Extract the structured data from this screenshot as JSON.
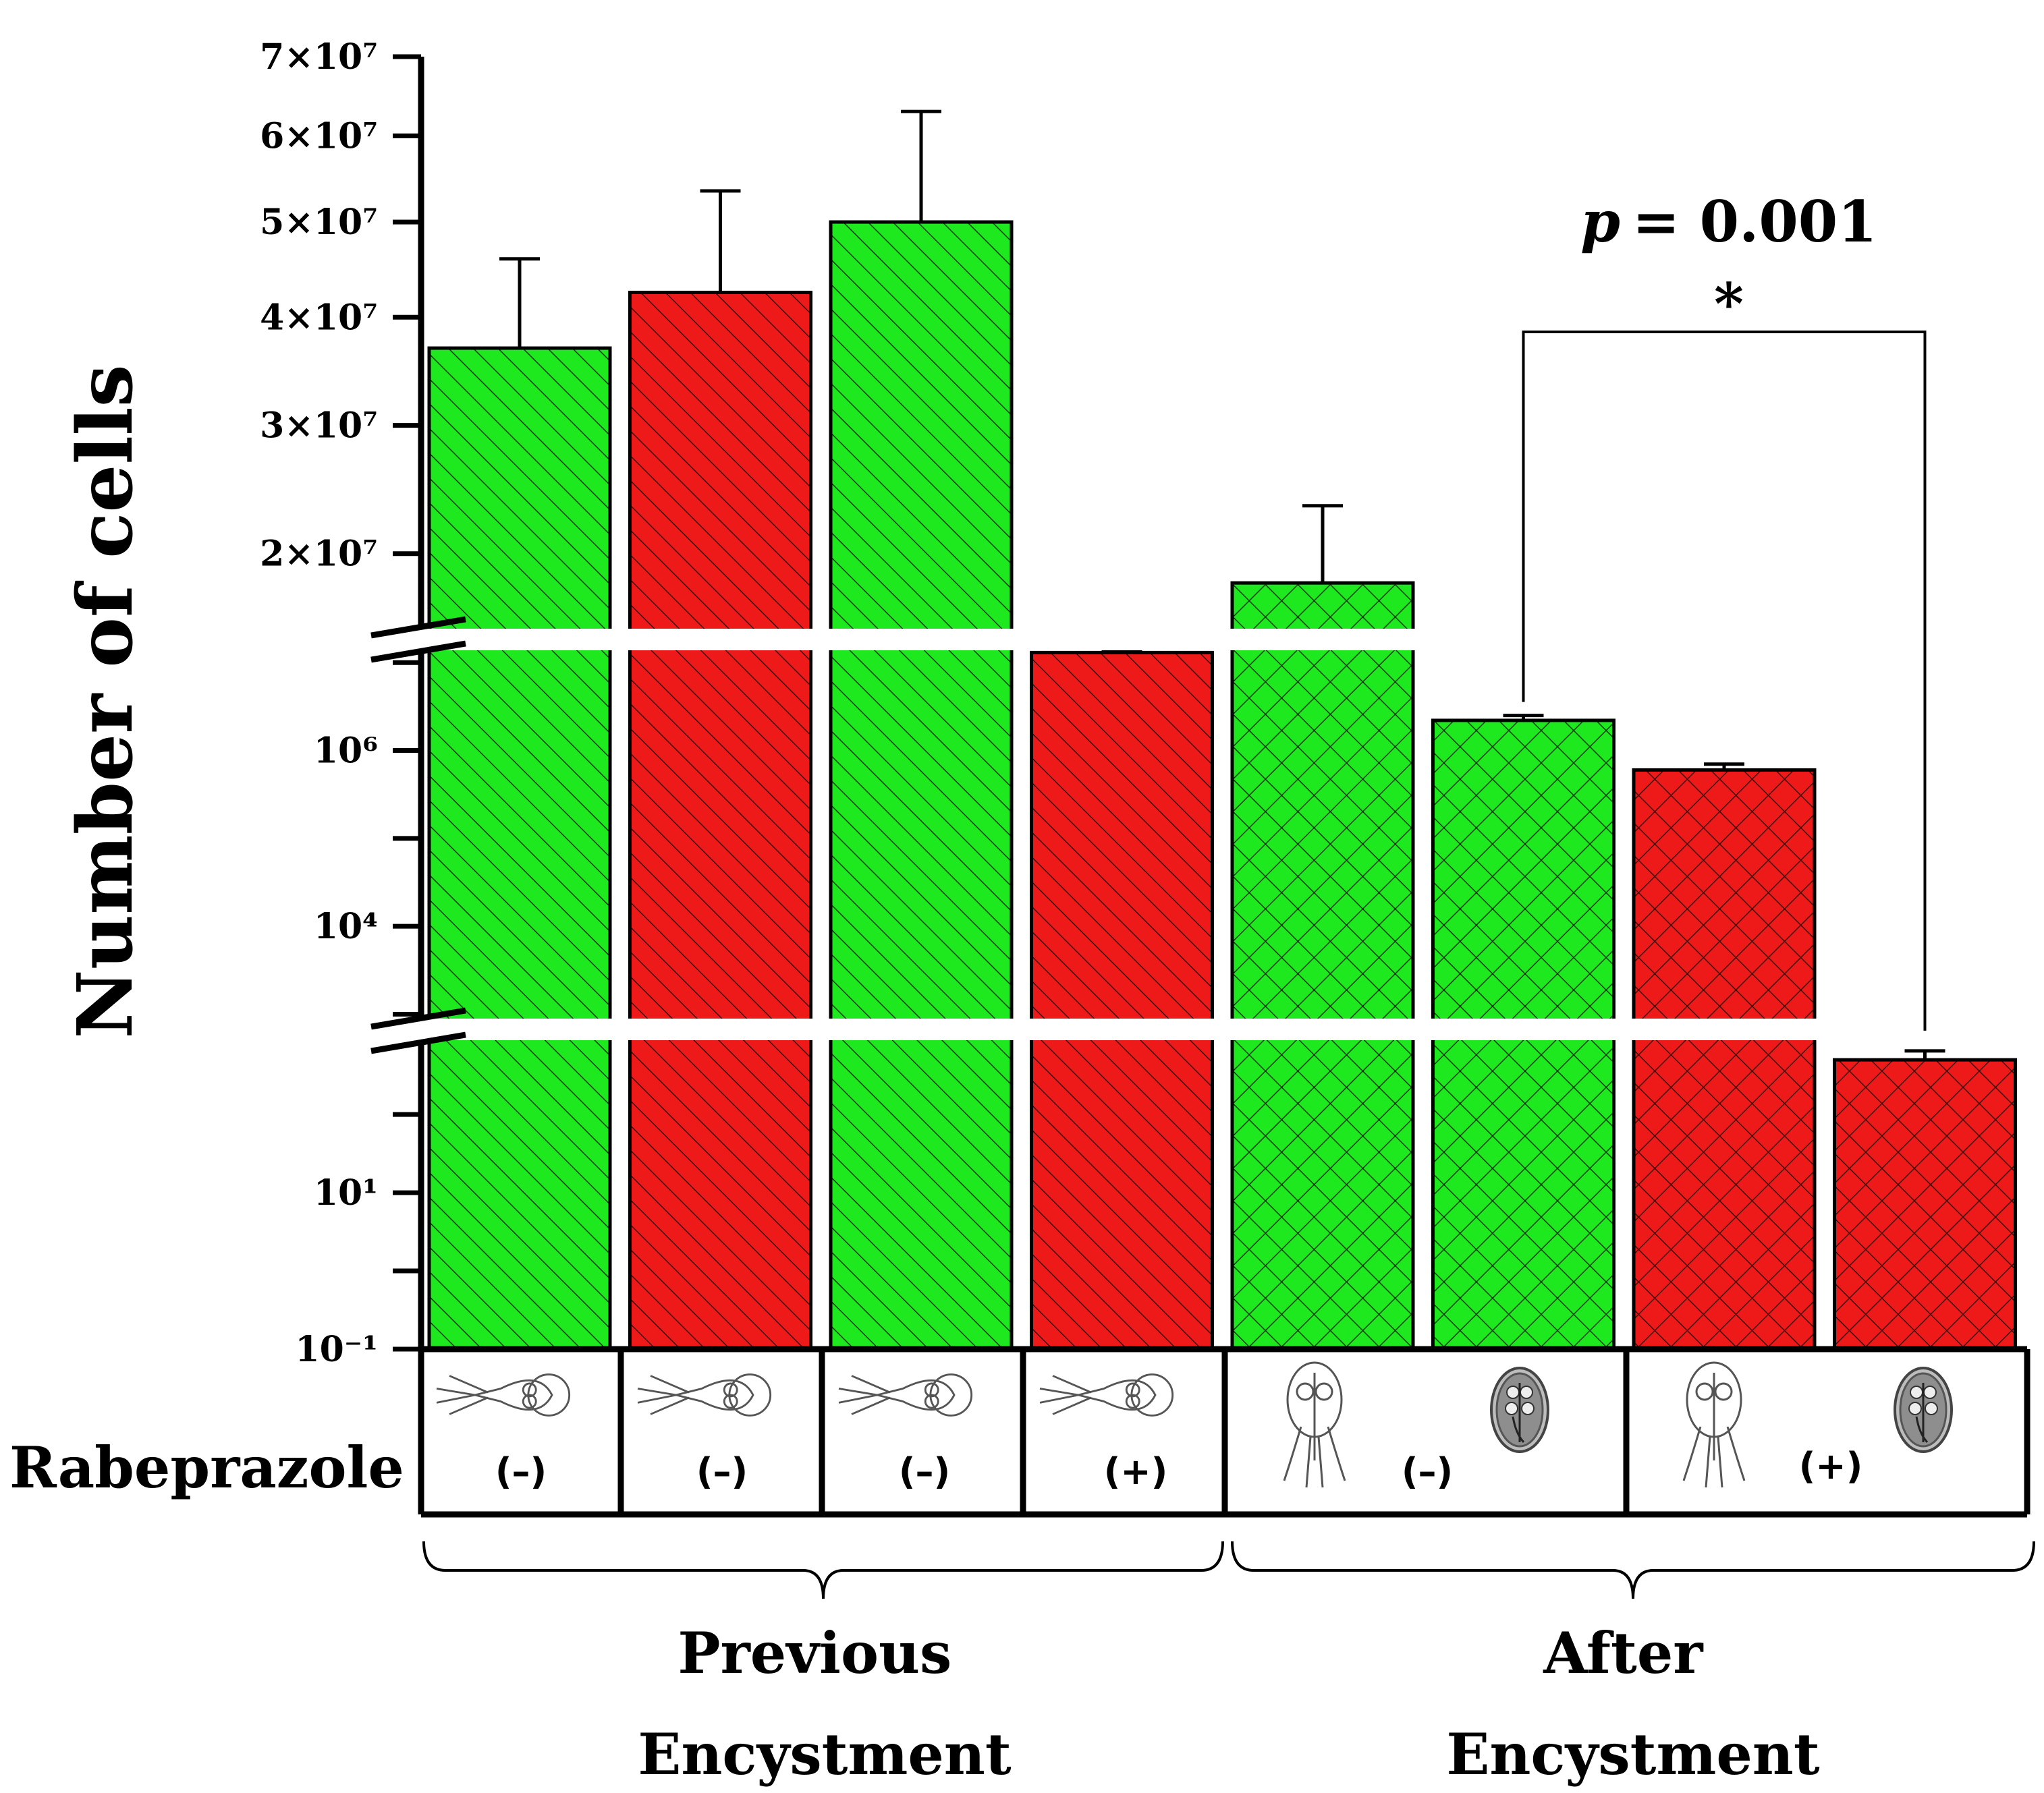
{
  "chart_data": {
    "type": "bar",
    "ylabel": "Number of cells",
    "yscale": "broken (linear top / log middle / log bottom)",
    "yticks_top": [
      "2×10⁷",
      "3×10⁷",
      "4×10⁷",
      "5×10⁷",
      "6×10⁷",
      "7×10⁷"
    ],
    "yticks_mid": [
      "10⁴",
      "10⁶"
    ],
    "yticks_bottom": [
      "10⁻¹",
      "10¹"
    ],
    "ytick_values_top": [
      20000000.0,
      30000000.0,
      40000000.0,
      50000000.0,
      60000000.0,
      70000000.0
    ],
    "row_label": "Rabeprazole",
    "treatments": [
      "(–)",
      "(–)",
      "(–)",
      "(+)",
      "(–)",
      "(+)"
    ],
    "groups": [
      "Previous Encystment",
      "After Encystment"
    ],
    "group_lines": [
      [
        "Previous",
        "Encystment"
      ],
      [
        "After",
        "Encystment"
      ]
    ],
    "bars": [
      {
        "value": 37000000.0,
        "error": 9000000.0,
        "color": "green",
        "pattern": "hatch"
      },
      {
        "value": 42500000.0,
        "error": 11000000.0,
        "color": "red",
        "pattern": "hatch"
      },
      {
        "value": 50000000.0,
        "error": 13000000.0,
        "color": "green",
        "pattern": "hatch"
      },
      {
        "value": 13000000.0,
        "error": 500000.0,
        "color": "red",
        "pattern": "hatch"
      },
      {
        "value": 18000000.0,
        "error": 5500000.0,
        "color": "green",
        "pattern": "crosshatch"
      },
      {
        "value": 2200000.0,
        "error": 300000.0,
        "color": "green",
        "pattern": "crosshatch"
      },
      {
        "value": 600000.0,
        "error": 100000.0,
        "color": "red",
        "pattern": "crosshatch"
      },
      {
        "value": 500,
        "error": 150,
        "color": "red",
        "pattern": "crosshatch"
      }
    ],
    "significance": {
      "label": "*",
      "p_text": "= 0.001",
      "p_symbol": "p",
      "between_bars": [
        6,
        8
      ]
    },
    "colors": {
      "green": "#1ee81e",
      "red": "#ee1a1a"
    },
    "cell_icons": [
      "trophozoite-icon",
      "trophozoite-icon",
      "trophozoite-icon",
      "trophozoite-icon",
      "trophozoite-icon",
      "cyst-icon",
      "trophozoite-icon",
      "cyst-icon"
    ]
  }
}
